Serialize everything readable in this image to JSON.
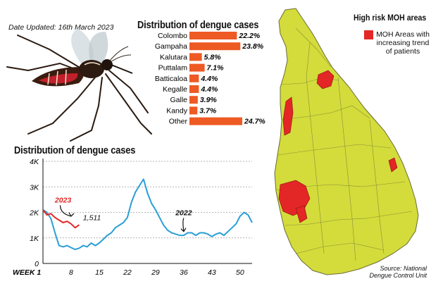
{
  "header": {
    "date_updated": "Date Updated:   16th March 2023"
  },
  "map": {
    "title": "High risk MOH areas",
    "legend_label": "MOH Areas with increasing trend of patients",
    "colors": {
      "land": "#d3dc3a",
      "high_risk": "#e32626",
      "border": "#6b6b3a"
    }
  },
  "source": "Source: National Dengue Control Unit",
  "icons": {
    "mosquito": "mosquito-icon"
  },
  "chart_data": [
    {
      "type": "bar",
      "orientation": "horizontal",
      "title": "Distribution of dengue cases",
      "categories": [
        "Colombo",
        "Gampaha",
        "Kalutara",
        "Puttalam",
        "Batticaloa",
        "Kegalle",
        "Galle",
        "Kandy",
        "Other"
      ],
      "values": [
        22.2,
        23.8,
        5.8,
        7.1,
        4.4,
        4.4,
        3.9,
        3.7,
        24.7
      ],
      "value_labels": [
        "22.2%",
        "23.8%",
        "5.8%",
        "7.1%",
        "4.4%",
        "4.4%",
        "3.9%",
        "3.7%",
        "24.7%"
      ],
      "unit": "%",
      "xlim": [
        0,
        24.7
      ],
      "color": "#ee5a24"
    },
    {
      "type": "line",
      "title": "Distribution of dengue cases",
      "xlabel": "WEEK",
      "x_ticks": [
        1,
        8,
        15,
        22,
        29,
        36,
        43,
        50
      ],
      "x_tick_labels": [
        "WEEK 1",
        "8",
        "15",
        "22",
        "29",
        "36",
        "43",
        "50"
      ],
      "y_ticks": [
        0,
        1000,
        2000,
        3000,
        4000
      ],
      "y_tick_labels": [
        "0",
        "1K",
        "2K",
        "3K",
        "4K"
      ],
      "ylim": [
        0,
        4000
      ],
      "xlim": [
        1,
        53
      ],
      "grid": true,
      "series": [
        {
          "name": "2022",
          "color": "#2a9fd6",
          "x": [
            1,
            2,
            3,
            4,
            5,
            6,
            7,
            8,
            9,
            10,
            11,
            12,
            13,
            14,
            15,
            16,
            17,
            18,
            19,
            20,
            21,
            22,
            23,
            24,
            25,
            26,
            27,
            28,
            29,
            30,
            31,
            32,
            33,
            34,
            35,
            36,
            37,
            38,
            39,
            40,
            41,
            42,
            43,
            44,
            45,
            46,
            47,
            48,
            49,
            50,
            51,
            52,
            53
          ],
          "y": [
            2100,
            2000,
            1750,
            1200,
            700,
            650,
            700,
            620,
            550,
            600,
            700,
            650,
            800,
            700,
            800,
            950,
            1100,
            1200,
            1400,
            1500,
            1600,
            1800,
            2400,
            2800,
            3050,
            3300,
            2750,
            2350,
            2100,
            1800,
            1500,
            1300,
            1200,
            1150,
            1100,
            1100,
            1200,
            1200,
            1100,
            1200,
            1200,
            1150,
            1050,
            1150,
            1200,
            1100,
            1250,
            1400,
            1550,
            1850,
            2000,
            1900,
            1600
          ]
        },
        {
          "name": "2023",
          "color": "#e32626",
          "x": [
            1,
            2,
            3,
            4,
            5,
            6,
            7,
            8,
            9,
            10
          ],
          "y": [
            2100,
            1900,
            1950,
            1800,
            1700,
            1600,
            1650,
            1550,
            1400,
            1511
          ]
        }
      ],
      "annotations": [
        {
          "text": "2023",
          "x": 6,
          "y": 2500
        },
        {
          "text": "2022",
          "x": 36,
          "y": 2000
        },
        {
          "text": "1,511",
          "x": 12,
          "y": 1511
        }
      ]
    }
  ]
}
